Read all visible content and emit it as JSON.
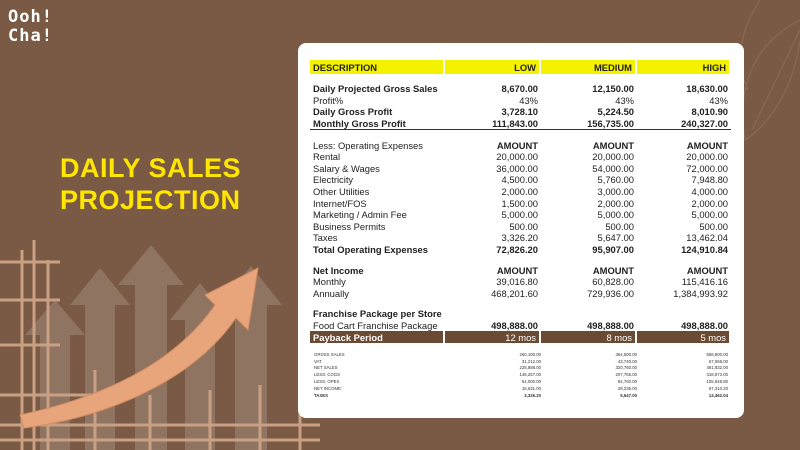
{
  "logo": {
    "line1": "Ooh!",
    "line2": "Cha!"
  },
  "slide_title": {
    "line1": "DAILY SALES",
    "line2": "PROJECTION"
  },
  "table": {
    "headers": [
      "DESCRIPTION",
      "LOW",
      "MEDIUM",
      "HIGH"
    ],
    "rows": [
      {
        "label": "Daily Projected Gross Sales",
        "low": "8,670.00",
        "medium": "12,150.00",
        "high": "18,630.00"
      },
      {
        "label": "Profit%",
        "low": "43%",
        "medium": "43%",
        "high": "43%"
      },
      {
        "label": "Daily Gross Profit",
        "low": "3,728.10",
        "medium": "5,224.50",
        "high": "8,010.90"
      },
      {
        "label": "Monthly Gross Profit",
        "low": "111,843.00",
        "medium": "156,735.00",
        "high": "240,327.00"
      },
      {
        "label": "Less: Operating Expenses",
        "low": "AMOUNT",
        "medium": "AMOUNT",
        "high": "AMOUNT"
      },
      {
        "label": "Rental",
        "low": "20,000.00",
        "medium": "20,000.00",
        "high": "20,000.00"
      },
      {
        "label": "Salary & Wages",
        "low": "36,000.00",
        "medium": "54,000.00",
        "high": "72,000.00"
      },
      {
        "label": "Electricity",
        "low": "4,500.00",
        "medium": "5,760.00",
        "high": "7,948.80"
      },
      {
        "label": "Other Utilities",
        "low": "2,000.00",
        "medium": "3,000.00",
        "high": "4,000.00"
      },
      {
        "label": "Internet/FOS",
        "low": "1,500.00",
        "medium": "2,000.00",
        "high": "2,000.00"
      },
      {
        "label": "Marketing / Admin Fee",
        "low": "5,000.00",
        "medium": "5,000.00",
        "high": "5,000.00"
      },
      {
        "label": "Business Permits",
        "low": "500.00",
        "medium": "500.00",
        "high": "500.00"
      },
      {
        "label": "Taxes",
        "low": "3,326.20",
        "medium": "5,647.00",
        "high": "13,462.04"
      },
      {
        "label": "Total Operating Expenses",
        "low": "72,826.20",
        "medium": "95,907.00",
        "high": "124,910.84"
      },
      {
        "label": "Net Income",
        "low": "AMOUNT",
        "medium": "AMOUNT",
        "high": "AMOUNT"
      },
      {
        "label": "Monthly",
        "low": "39,016.80",
        "medium": "60,828.00",
        "high": "115,416.16"
      },
      {
        "label": "Annually",
        "low": "468,201.60",
        "medium": "729,936.00",
        "high": "1,384,993.92"
      },
      {
        "label": "Franchise Package per Store",
        "low": "",
        "medium": "",
        "high": ""
      },
      {
        "label": "Food Cart Franchise Package",
        "low": "498,888.00",
        "medium": "498,888.00",
        "high": "498,888.00"
      },
      {
        "label": "Payback Period",
        "low": "12 mos",
        "medium": "8 mos",
        "high": "5 mos"
      }
    ]
  },
  "summary": {
    "rows": [
      {
        "label": "GROSS SALES",
        "low": "260,100.00",
        "medium": "364,500.00",
        "high": "558,900.00"
      },
      {
        "label": "VAT",
        "low": "31,212.00",
        "medium": "43,740.00",
        "high": "67,068.00"
      },
      {
        "label": "NET SALES",
        "low": "228,888.00",
        "medium": "320,760.00",
        "high": "491,832.00"
      },
      {
        "label": "LESS: COGS",
        "low": "148,257.00",
        "medium": "207,765.00",
        "high": "318,573.00"
      },
      {
        "label": "LESS: OPEX",
        "low": "64,000.00",
        "medium": "84,760.00",
        "high": "105,948.80"
      },
      {
        "label": "NET INCOME:",
        "low": "16,631.00",
        "medium": "28,235.00",
        "high": "67,310.20"
      },
      {
        "label": "TAXES",
        "low": "3,326.20",
        "medium": "5,647.00",
        "high": "13,462.04"
      }
    ]
  },
  "colors": {
    "background": "#7a5a45",
    "title": "#ffe600",
    "header": "#f5f200",
    "payback": "#6b4a34",
    "arrow": "#e8a47a"
  }
}
